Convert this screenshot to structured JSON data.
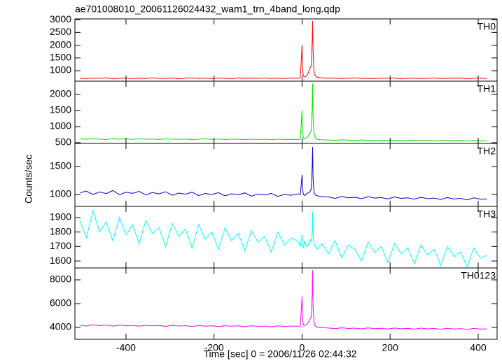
{
  "chart_data": {
    "type": "line",
    "title": "ae701008010_20061126024432_wam1_trn_4band_long.qdp",
    "xlabel": "Time [sec] 0 = 2006/11/26 02:44:32",
    "ylabel": "Counts/sec",
    "x": [
      -505,
      -490,
      -475,
      -460,
      -445,
      -430,
      -415,
      -400,
      -385,
      -370,
      -355,
      -340,
      -325,
      -310,
      -295,
      -280,
      -265,
      -250,
      -235,
      -220,
      -205,
      -190,
      -175,
      -160,
      -145,
      -130,
      -115,
      -100,
      -85,
      -70,
      -55,
      -40,
      -25,
      -10,
      -4,
      0,
      1,
      3,
      6,
      10,
      14,
      18,
      21,
      23,
      24,
      25,
      27,
      30,
      35,
      45,
      60,
      75,
      90,
      105,
      120,
      135,
      150,
      165,
      180,
      195,
      210,
      225,
      240,
      255,
      270,
      285,
      300,
      315,
      330,
      345,
      360,
      375,
      390,
      405,
      420
    ],
    "xlim": [
      -516,
      443
    ],
    "xticks": [
      -400,
      -200,
      0,
      200,
      400
    ],
    "panels": [
      {
        "label": "TH0",
        "color": "#ff0000",
        "ylim": [
          590,
          3030
        ],
        "yticks": [
          1000,
          1500,
          2000,
          2500,
          3000
        ],
        "values": [
          705,
          690,
          712,
          698,
          720,
          684,
          701,
          715,
          693,
          708,
          688,
          719,
          702,
          695,
          711,
          686,
          704,
          716,
          697,
          709,
          691,
          713,
          700,
          687,
          718,
          694,
          706,
          699,
          714,
          689,
          707,
          696,
          710,
          702,
          715,
          2000,
          1100,
          800,
          750,
          800,
          900,
          1100,
          1200,
          2200,
          2950,
          1800,
          1000,
          800,
          740,
          720,
          698,
          712,
          690,
          705,
          716,
          693,
          701,
          688,
          709,
          697,
          714,
          686,
          703,
          711,
          692,
          700,
          717,
          689,
          706,
          695,
          710,
          684,
          702,
          713,
          691
        ]
      },
      {
        "label": "TH1",
        "color": "#00e000",
        "ylim": [
          478,
          2413
        ],
        "yticks": [
          500,
          1000,
          1500,
          2000
        ],
        "values": [
          620,
          605,
          628,
          612,
          598,
          625,
          610,
          618,
          603,
          622,
          608,
          615,
          600,
          619,
          611,
          604,
          617,
          596,
          609,
          621,
          602,
          614,
          599,
          612,
          606,
          593,
          611,
          601,
          607,
          595,
          610,
          598,
          604,
          600,
          610,
          1500,
          900,
          650,
          620,
          660,
          700,
          800,
          850,
          1600,
          2350,
          1300,
          800,
          650,
          600,
          590,
          585,
          572,
          590,
          578,
          568,
          583,
          575,
          566,
          580,
          571,
          576,
          562,
          574,
          581,
          567,
          573,
          560,
          577,
          569,
          565,
          574,
          558,
          570,
          563,
          568
        ]
      },
      {
        "label": "TH2",
        "color": "#0000d0",
        "ylim": [
          787,
          1912
        ],
        "yticks": [
          1000,
          1500
        ],
        "values": [
          1030,
          1060,
          1000,
          1045,
          1015,
          1070,
          995,
          1040,
          1020,
          1055,
          990,
          1035,
          1010,
          1048,
          985,
          1025,
          1005,
          1042,
          980,
          1018,
          1000,
          1032,
          975,
          1012,
          995,
          1028,
          970,
          1008,
          990,
          1020,
          965,
          1003,
          985,
          1010,
          1000,
          1350,
          1100,
          1000,
          980,
          1010,
          1030,
          1050,
          1100,
          1500,
          1850,
          1300,
          1050,
          990,
          975,
          960,
          955,
          930,
          965,
          940,
          950,
          925,
          960,
          935,
          945,
          920,
          955,
          930,
          940,
          915,
          950,
          925,
          935,
          910,
          945,
          920,
          930,
          905,
          940,
          915,
          920
        ]
      },
      {
        "label": "TH3",
        "color": "#00ffff",
        "ylim": [
          1552,
          1977
        ],
        "yticks": [
          1600,
          1700,
          1800,
          1900
        ],
        "values": [
          1880,
          1760,
          1950,
          1800,
          1870,
          1740,
          1900,
          1780,
          1850,
          1720,
          1880,
          1790,
          1830,
          1700,
          1860,
          1770,
          1820,
          1690,
          1850,
          1750,
          1800,
          1680,
          1830,
          1740,
          1790,
          1670,
          1810,
          1730,
          1770,
          1660,
          1800,
          1710,
          1760,
          1740,
          1700,
          1780,
          1720,
          1690,
          1740,
          1700,
          1710,
          1750,
          1730,
          1800,
          1940,
          1780,
          1720,
          1700,
          1680,
          1720,
          1650,
          1740,
          1620,
          1710,
          1680,
          1600,
          1730,
          1660,
          1700,
          1590,
          1720,
          1650,
          1690,
          1580,
          1710,
          1640,
          1680,
          1570,
          1700,
          1630,
          1660,
          1560,
          1690,
          1620,
          1640
        ]
      },
      {
        "label": "TH0123",
        "color": "#ff00ff",
        "ylim": [
          3000,
          9000
        ],
        "yticks": [
          4000,
          6000,
          8000
        ],
        "values": [
          4180,
          4120,
          4220,
          4150,
          4200,
          4110,
          4190,
          4140,
          4170,
          4100,
          4180,
          4130,
          4160,
          4090,
          4170,
          4120,
          4150,
          4080,
          4160,
          4110,
          4140,
          4070,
          4150,
          4100,
          4130,
          4060,
          4140,
          4090,
          4120,
          4050,
          4130,
          4080,
          4110,
          4100,
          4100,
          6600,
          4800,
          4200,
          4150,
          4250,
          4400,
          4700,
          4900,
          6800,
          8800,
          5800,
          4500,
          4100,
          4000,
          3980,
          3950,
          3900,
          3970,
          3910,
          3940,
          3880,
          3960,
          3900,
          3930,
          3870,
          3950,
          3890,
          3920,
          3860,
          3940,
          3880,
          3910,
          3850,
          3930,
          3870,
          3900,
          3840,
          3920,
          3860,
          3880
        ]
      }
    ]
  }
}
